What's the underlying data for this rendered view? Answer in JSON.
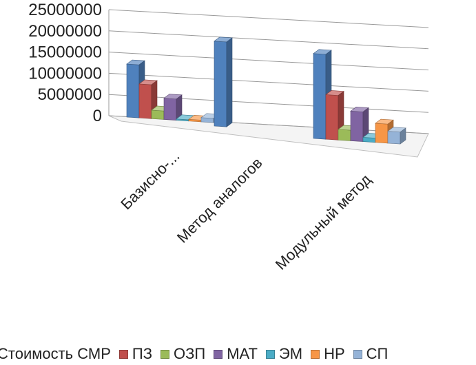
{
  "chart_data": {
    "type": "bar",
    "title": "",
    "xlabel": "",
    "ylabel": "",
    "ylim": [
      0,
      25000000
    ],
    "y_ticks": [
      "25000000",
      "20000000",
      "15000000",
      "10000000",
      "5000000",
      "0"
    ],
    "y_tick_values": [
      25000000,
      20000000,
      15000000,
      10000000,
      5000000,
      0
    ],
    "grid": true,
    "legend_position": "bottom",
    "categories": [
      "Базисно-...",
      "Метод аналогов",
      "Модульный метод"
    ],
    "series": [
      {
        "name": "Стоимость СМР",
        "color": "#4F81BD",
        "values": [
          12500000,
          20000000,
          20000000
        ]
      },
      {
        "name": "ПЗ",
        "color": "#C0504D",
        "values": [
          8000000,
          0,
          10500000
        ]
      },
      {
        "name": "ОЗП",
        "color": "#9BBB59",
        "values": [
          2000000,
          0,
          2500000
        ]
      },
      {
        "name": "МАТ",
        "color": "#8064A2",
        "values": [
          5000000,
          0,
          7000000
        ]
      },
      {
        "name": "ЭМ",
        "color": "#4BACC6",
        "values": [
          300000,
          0,
          1000000
        ]
      },
      {
        "name": "НР",
        "color": "#F79646",
        "values": [
          400000,
          0,
          4500000
        ]
      },
      {
        "name": "СП",
        "color": "#95B3D7",
        "values": [
          1000000,
          0,
          2800000
        ]
      }
    ]
  }
}
